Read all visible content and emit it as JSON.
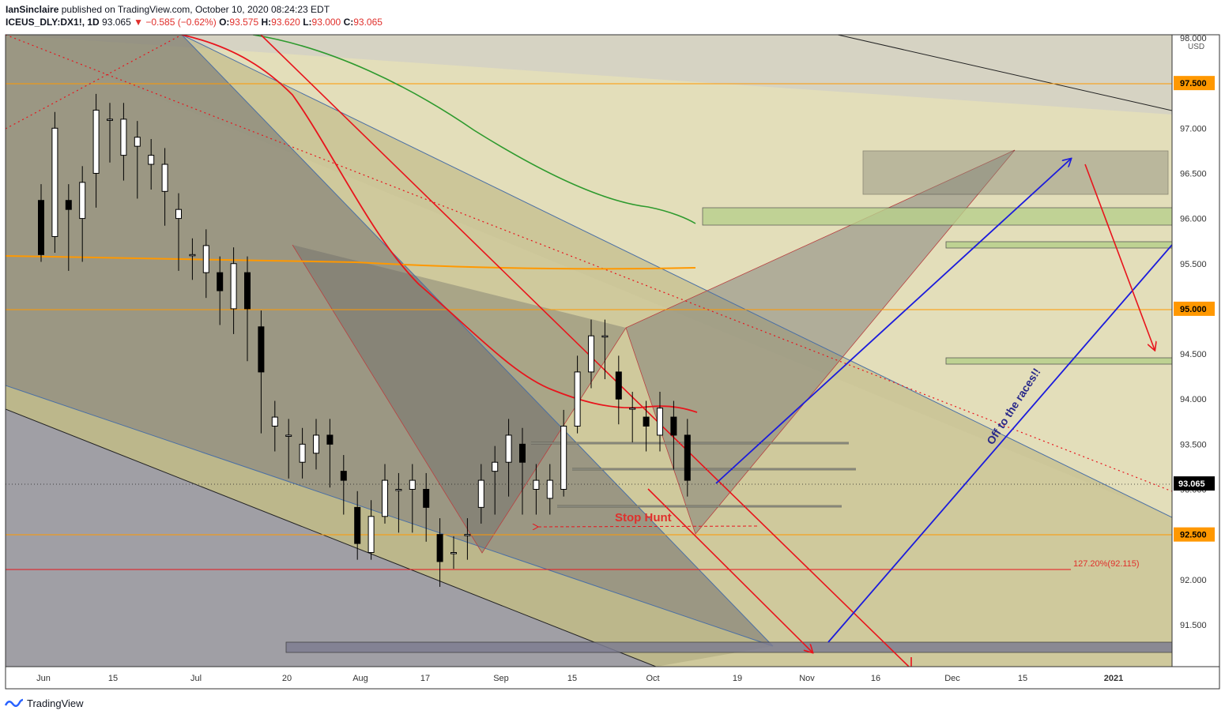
{
  "header": {
    "line1_user": "IanSinclaire",
    "line1_rest": "published on TradingView.com, October 10, 2020 08:24:23 EDT",
    "symbol": "ICEUS_DLY:DX1!, 1D",
    "last": "93.065",
    "arrow": "▼",
    "change": "−0.585 (−0.62%)",
    "o_label": "O:",
    "o_val": "93.575",
    "h_label": "H:",
    "h_val": "93.620",
    "l_label": "L:",
    "l_val": "93.000",
    "c_label": "C:",
    "c_val": "93.065"
  },
  "footer": {
    "brand": "TradingView"
  },
  "colors": {
    "up_candle": "#ffffff",
    "down_candle": "#000000",
    "sma_short": "#e8141c",
    "sma_mid": "#2e9a2e",
    "sma_long": "#ff9800",
    "arrow_blue": "#1b1bdc",
    "arrow_red": "#e8141c",
    "level_line": "#ff9800",
    "price_tag": "#ff9800"
  },
  "chart_data": {
    "type": "candlestick",
    "timeframe": "1D",
    "currency": "USD",
    "y_range": [
      91.0,
      98.0
    ],
    "y_ticks": [
      "98.000",
      "97.500",
      "97.000",
      "96.500",
      "96.000",
      "95.500",
      "95.000",
      "94.500",
      "94.000",
      "93.500",
      "93.000",
      "92.500",
      "92.000",
      "91.500"
    ],
    "x_ticks": [
      "Jun",
      "15",
      "Jul",
      "20",
      "Aug",
      "17",
      "Sep",
      "15",
      "Oct",
      "19",
      "Nov",
      "16",
      "Dec",
      "15",
      "2021"
    ],
    "highlighted_prices": [
      "97.500",
      "95.000",
      "92.500"
    ],
    "last_price": "93.065",
    "horizontal_levels": [
      97.5,
      95.0,
      92.5,
      92.115
    ],
    "fib_label": "127.20%(92.115)",
    "annotations": [
      "Stop Hunt",
      "Off to the races!!"
    ],
    "candles": [
      [
        96.2,
        95.6,
        95.7,
        96.2
      ],
      [
        95.8,
        97.0,
        96.1,
        95.7
      ],
      [
        96.2,
        96.1,
        95.8,
        95.5
      ],
      [
        96.0,
        96.4,
        96.5,
        95.6
      ],
      [
        96.5,
        97.2,
        96.2,
        96.2
      ],
      [
        97.1,
        97.1,
        96.8,
        96.7
      ],
      [
        96.7,
        97.1,
        96.8,
        96.5
      ],
      [
        96.8,
        96.9,
        96.7,
        96.3
      ],
      [
        96.6,
        96.7,
        96.4,
        96.4
      ],
      [
        96.3,
        96.6,
        96.0,
        96.2
      ],
      [
        96.0,
        96.1,
        95.6,
        95.5
      ],
      [
        95.6,
        95.6,
        95.4,
        95.4
      ],
      [
        95.4,
        95.7,
        95.5,
        95.2
      ],
      [
        95.4,
        95.2,
        95.0,
        94.9
      ],
      [
        95.0,
        95.5,
        95.2,
        94.8
      ],
      [
        95.4,
        95.0,
        94.7,
        94.5
      ],
      [
        94.8,
        94.3,
        93.9,
        93.7
      ],
      [
        93.7,
        93.8,
        93.6,
        93.5
      ],
      [
        93.6,
        93.6,
        93.3,
        93.2
      ],
      [
        93.3,
        93.5,
        93.4,
        93.2
      ],
      [
        93.4,
        93.6,
        93.4,
        93.3
      ],
      [
        93.6,
        93.5,
        93.2,
        93.1
      ],
      [
        93.2,
        93.1,
        92.8,
        92.8
      ],
      [
        92.8,
        92.4,
        92.3,
        92.3
      ],
      [
        92.3,
        92.7,
        92.7,
        92.4
      ],
      [
        92.7,
        93.1,
        92.9,
        92.8
      ],
      [
        93.0,
        93.0,
        92.9,
        92.6
      ],
      [
        93.0,
        93.1,
        92.9,
        92.6
      ],
      [
        93.0,
        92.8,
        92.6,
        92.5
      ],
      [
        92.5,
        92.2,
        92.1,
        92.0
      ],
      [
        92.3,
        92.3,
        92.3,
        92.2
      ],
      [
        92.5,
        92.5,
        92.3,
        92.3
      ],
      [
        92.8,
        93.1,
        93.0,
        92.7
      ],
      [
        93.2,
        93.3,
        93.0,
        92.8
      ],
      [
        93.3,
        93.6,
        93.3,
        93.0
      ],
      [
        93.5,
        93.3,
        92.9,
        92.8
      ],
      [
        93.0,
        93.1,
        92.9,
        92.8
      ],
      [
        92.9,
        93.1,
        93.0,
        92.8
      ],
      [
        93.0,
        93.7,
        93.8,
        93.0
      ],
      [
        93.7,
        94.3,
        94.3,
        93.8
      ],
      [
        94.3,
        94.7,
        94.7,
        94.2
      ],
      [
        94.7,
        94.7,
        94.3,
        94.3
      ],
      [
        94.3,
        94.0,
        93.9,
        93.8
      ],
      [
        93.9,
        93.9,
        93.8,
        93.6
      ],
      [
        93.8,
        93.7,
        93.6,
        93.5
      ],
      [
        93.6,
        93.9,
        93.9,
        93.5
      ],
      [
        93.8,
        93.6,
        93.4,
        93.3
      ],
      [
        93.6,
        93.1,
        93.065,
        93.0
      ]
    ]
  }
}
